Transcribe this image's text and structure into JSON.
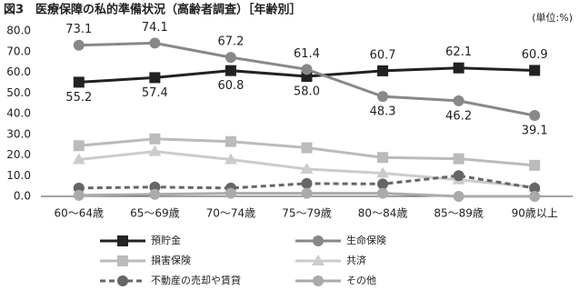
{
  "chart_data": {
    "type": "line",
    "title": "図3　医療保障の私的準備状況（高齢者調査）［年齢別］",
    "unit_label": "(単位:%)",
    "categories": [
      "60～64歳",
      "65～69歳",
      "70～74歳",
      "75～79歳",
      "80～84歳",
      "85～89歳",
      "90歳以上"
    ],
    "ylim": [
      0,
      80
    ],
    "yticks": [
      {
        "value": 0,
        "label": "0.0"
      },
      {
        "value": 10,
        "label": "10.0"
      },
      {
        "value": 20,
        "label": "20.0"
      },
      {
        "value": 30,
        "label": "30.0"
      },
      {
        "value": 40,
        "label": "40.0"
      },
      {
        "value": 50,
        "label": "50.0"
      },
      {
        "value": 60,
        "label": "60.0"
      },
      {
        "value": 70,
        "label": "70.0"
      },
      {
        "value": 80,
        "label": "80.0"
      }
    ],
    "grid": false,
    "series": [
      {
        "name": "預貯金",
        "color": "#222222",
        "marker": "square",
        "dashed": false,
        "values": [
          55.2,
          57.4,
          60.8,
          58.0,
          60.7,
          62.1,
          60.9
        ],
        "value_labels": [
          "55.2",
          "57.4",
          "60.8",
          "58.0",
          "60.7",
          "62.1",
          "60.9"
        ]
      },
      {
        "name": "生命保険",
        "color": "#888888",
        "marker": "circle",
        "dashed": false,
        "values": [
          73.1,
          74.1,
          67.2,
          61.4,
          48.3,
          46.2,
          39.1
        ],
        "value_labels": [
          "73.1",
          "74.1",
          "67.2",
          "61.4",
          "48.3",
          "46.2",
          "39.1"
        ]
      },
      {
        "name": "損害保険",
        "color": "#bbbbbb",
        "marker": "square",
        "dashed": false,
        "values": [
          24.5,
          27.8,
          26.5,
          23.5,
          18.8,
          18.2,
          15.0
        ]
      },
      {
        "name": "共済",
        "color": "#cccccc",
        "marker": "triangle",
        "dashed": false,
        "values": [
          17.8,
          21.7,
          17.8,
          13.2,
          11.2,
          8.0,
          4.5
        ]
      },
      {
        "name": "不動産の売却や賃貸",
        "color": "#666666",
        "marker": "circle",
        "dashed": true,
        "values": [
          4.0,
          4.5,
          4.0,
          6.2,
          6.0,
          10.0,
          4.0
        ]
      },
      {
        "name": "その他",
        "color": "#aaaaaa",
        "marker": "circle",
        "dashed": false,
        "values": [
          0.5,
          1.0,
          1.5,
          1.5,
          1.5,
          0.0,
          0.0
        ]
      }
    ]
  }
}
